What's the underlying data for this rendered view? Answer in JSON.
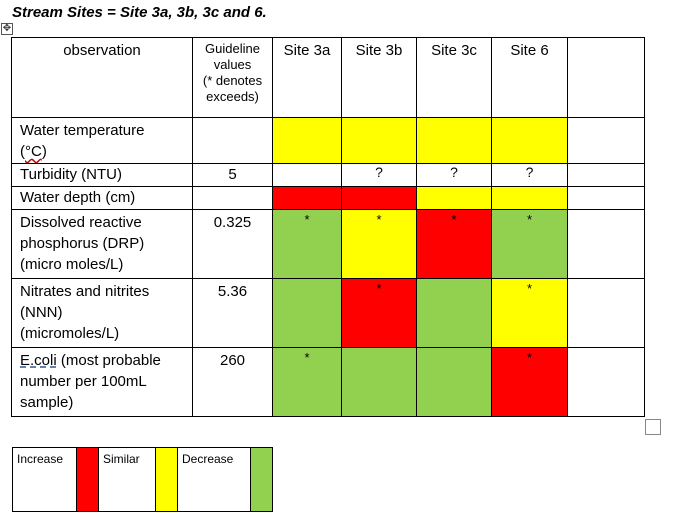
{
  "title": "Stream Sites = Site 3a, 3b, 3c and 6.",
  "header": {
    "observation": "observation",
    "guideline_line1": "Guideline",
    "guideline_line2": "values",
    "guideline_line3": "(* denotes",
    "guideline_line4": "exceeds)",
    "sites": [
      "Site 3a",
      "Site 3b",
      "Site 3c",
      "Site 6"
    ]
  },
  "rows": [
    {
      "observation_line1": "Water temperature",
      "observation_line2": "(",
      "observation_unit": "°C",
      "observation_line2_end": ")",
      "guideline": "",
      "cells": [
        "",
        "",
        "",
        ""
      ],
      "colors": [
        "yellow",
        "yellow",
        "yellow",
        "yellow"
      ]
    },
    {
      "observation_line1": "Turbidity (NTU)",
      "guideline": "5",
      "cells": [
        "",
        "?",
        "?",
        "?"
      ],
      "colors": [
        "none",
        "none",
        "none",
        "none"
      ]
    },
    {
      "observation_line1": "Water depth (cm)",
      "guideline": "",
      "cells": [
        "",
        "",
        "",
        ""
      ],
      "colors": [
        "red",
        "red",
        "yellow",
        "yellow"
      ]
    },
    {
      "observation_line1": "Dissolved reactive",
      "observation_line2": "phosphorus (DRP)",
      "observation_line3": "(micro moles/L)",
      "guideline": "0.325",
      "cells": [
        "*",
        "*",
        "*",
        "*"
      ],
      "colors": [
        "green",
        "yellow",
        "red",
        "green"
      ]
    },
    {
      "observation_line1": "Nitrates and nitrites",
      "observation_line2": "(NNN)",
      "observation_line3": "(micromoles/L)",
      "guideline": "5.36",
      "cells": [
        "",
        "*",
        "",
        "*"
      ],
      "colors": [
        "green",
        "red",
        "green",
        "yellow"
      ]
    },
    {
      "observation_line1_link": "E.coli",
      "observation_line1_rest": " (most probable",
      "observation_line2": "number per 100mL",
      "observation_line3": "sample)",
      "guideline": "260",
      "cells": [
        "*",
        "",
        "",
        "*"
      ],
      "colors": [
        "green",
        "green",
        "green",
        "red"
      ]
    }
  ],
  "legend": {
    "increase": "Increase",
    "similar": "Similar",
    "decrease": "Decrease",
    "colors": {
      "increase": "#ff0000",
      "similar": "#ffff00",
      "decrease": "#92d050"
    }
  },
  "colors": {
    "red": "#ff0000",
    "yellow": "#ffff00",
    "green": "#92d050"
  }
}
